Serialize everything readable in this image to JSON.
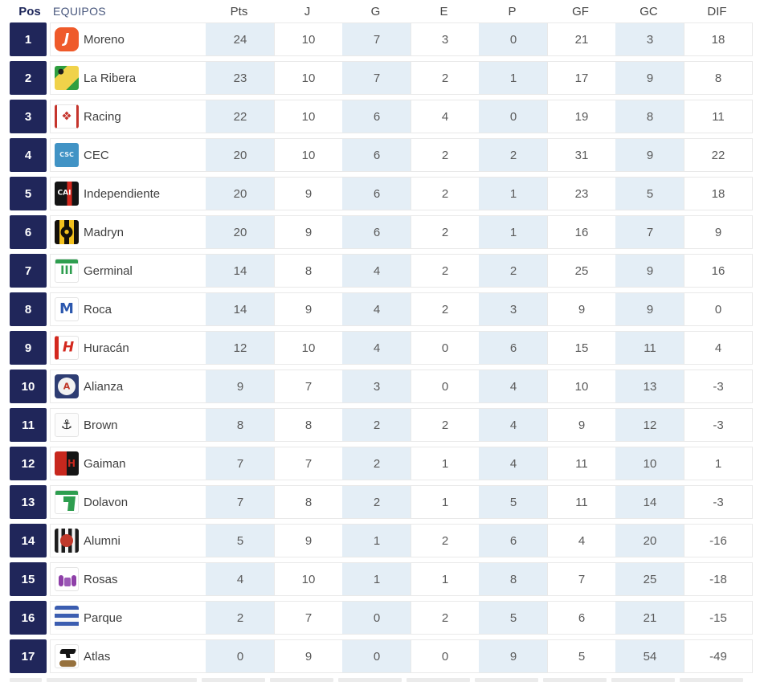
{
  "colors": {
    "position_box": "#20265a",
    "shaded_column": "#e4eef6",
    "row_border": "#e9e9e9",
    "header_pos_text": "#20295c",
    "header_equipos_text": "#47567c",
    "stat_header_text": "#454545",
    "stat_text": "#5a5a5a",
    "team_text": "#3f3f3f"
  },
  "table": {
    "columns": [
      {
        "key": "pos",
        "label": "Pos"
      },
      {
        "key": "team",
        "label": "EQUIPOS"
      },
      {
        "key": "pts",
        "label": "Pts"
      },
      {
        "key": "j",
        "label": "J"
      },
      {
        "key": "g",
        "label": "G"
      },
      {
        "key": "e",
        "label": "E"
      },
      {
        "key": "p",
        "label": "P"
      },
      {
        "key": "gf",
        "label": "GF"
      },
      {
        "key": "gc",
        "label": "GC"
      },
      {
        "key": "dif",
        "label": "DIF"
      }
    ],
    "shaded_stat_columns": [
      "pts",
      "g",
      "p",
      "gc"
    ],
    "rows": [
      {
        "pos": "1",
        "team": "Moreno",
        "stats": [
          24,
          10,
          7,
          3,
          0,
          21,
          3,
          18
        ],
        "logo": {
          "kind": "solid",
          "colors": [
            "#ef5a2a"
          ],
          "radius": 8,
          "glyph": {
            "text": "J",
            "color": "#ffffff",
            "size": 17,
            "italic": true
          }
        }
      },
      {
        "pos": "2",
        "team": "La Ribera",
        "stats": [
          23,
          10,
          7,
          2,
          1,
          17,
          9,
          8
        ],
        "logo": {
          "kind": "diagband",
          "colors": [
            "#2f9e3f",
            "#f0d24a"
          ],
          "glyph": {
            "text": "●",
            "color": "#1d1d1d",
            "size": 9,
            "pos": "tl"
          }
        }
      },
      {
        "pos": "3",
        "team": "Racing",
        "stats": [
          22,
          10,
          6,
          4,
          0,
          19,
          8,
          11
        ],
        "logo": {
          "kind": "solid",
          "colors": [
            "#ffffff"
          ],
          "edges": "#c5342c",
          "glyph": {
            "text": "❖",
            "color": "#c5342c",
            "size": 15
          }
        }
      },
      {
        "pos": "4",
        "team": "CEC",
        "stats": [
          20,
          10,
          6,
          2,
          2,
          31,
          9,
          22
        ],
        "logo": {
          "kind": "solid",
          "colors": [
            "#4193c5"
          ],
          "glyph": {
            "text": "CSC",
            "color": "#eaf4fa",
            "size": 8
          }
        }
      },
      {
        "pos": "5",
        "team": "Independiente",
        "stats": [
          20,
          9,
          6,
          2,
          1,
          23,
          5,
          18
        ],
        "logo": {
          "kind": "centerband",
          "colors": [
            "#141414",
            "#d3281e"
          ],
          "glyph": {
            "text": "CAI",
            "color": "#ffffff",
            "size": 9,
            "pos": "l"
          }
        }
      },
      {
        "pos": "6",
        "team": "Madryn",
        "stats": [
          20,
          9,
          6,
          2,
          1,
          16,
          7,
          9
        ],
        "logo": {
          "kind": "vstripes",
          "colors": [
            "#14100a",
            "#f2c01d"
          ],
          "stripes": 5,
          "ring": {
            "color": "#14100a",
            "size": 15
          },
          "glyph": {
            "text": "●",
            "color": "#f2c01d",
            "size": 7
          }
        }
      },
      {
        "pos": "7",
        "team": "Germinal",
        "stats": [
          14,
          8,
          4,
          2,
          2,
          25,
          9,
          16
        ],
        "logo": {
          "kind": "solid",
          "colors": [
            "#ffffff"
          ],
          "topbar": "#2e9e4f",
          "glyph": {
            "text": "III",
            "color": "#2e9e4f",
            "size": 14
          }
        }
      },
      {
        "pos": "8",
        "team": "Roca",
        "stats": [
          14,
          9,
          4,
          2,
          3,
          9,
          9,
          0
        ],
        "logo": {
          "kind": "solid",
          "colors": [
            "#ffffff"
          ],
          "glyph": {
            "text": "M",
            "color": "#2b57ae",
            "size": 18
          }
        }
      },
      {
        "pos": "9",
        "team": "Huracán",
        "stats": [
          12,
          10,
          4,
          0,
          6,
          15,
          11,
          4
        ],
        "logo": {
          "kind": "solid",
          "colors": [
            "#ffffff"
          ],
          "edge_left": "#d3281e",
          "glyph": {
            "text": "H",
            "color": "#d3281e",
            "size": 17,
            "italic": true
          }
        }
      },
      {
        "pos": "10",
        "team": "Alianza",
        "stats": [
          9,
          7,
          3,
          0,
          4,
          10,
          13,
          -3
        ],
        "logo": {
          "kind": "solid",
          "colors": [
            "#2e3d73"
          ],
          "radius": 4,
          "ring": {
            "color": "#f2f2f2",
            "size": 22
          },
          "glyph": {
            "text": "A",
            "color": "#c0392b",
            "size": 11
          }
        }
      },
      {
        "pos": "11",
        "team": "Brown",
        "stats": [
          8,
          8,
          2,
          2,
          4,
          9,
          12,
          -3
        ],
        "logo": {
          "kind": "solid",
          "colors": [
            "#fcfcfc"
          ],
          "glyph": {
            "text": "⚓",
            "color": "#1c1c1c",
            "size": 16
          }
        }
      },
      {
        "pos": "12",
        "team": "Gaiman",
        "stats": [
          7,
          7,
          2,
          1,
          4,
          11,
          10,
          1
        ],
        "logo": {
          "kind": "splitv",
          "colors": [
            "#c8281e",
            "#151515"
          ],
          "glyph": {
            "text": "H",
            "color": "#c8281e",
            "size": 12,
            "pos": "r"
          }
        }
      },
      {
        "pos": "13",
        "team": "Dolavon",
        "stats": [
          7,
          8,
          2,
          1,
          5,
          11,
          14,
          -3
        ],
        "logo": {
          "kind": "solid",
          "colors": [
            "#ffffff"
          ],
          "topbar": "#2e9e4f",
          "blocks": [
            {
              "x": 10,
              "y": 7,
              "w": 14,
              "h": 7,
              "color": "#2e9e4f"
            },
            {
              "x": 16,
              "y": 7,
              "w": 8,
              "h": 18,
              "color": "#2e9e4f",
              "skew": -6
            }
          ]
        }
      },
      {
        "pos": "14",
        "team": "Alumni",
        "stats": [
          5,
          9,
          1,
          2,
          6,
          4,
          20,
          -16
        ],
        "logo": {
          "kind": "vstripes",
          "colors": [
            "#1c1c1c",
            "#f3f3f3"
          ],
          "stripes": 7,
          "ring": {
            "color": "#c0392b",
            "size": 16
          }
        }
      },
      {
        "pos": "15",
        "team": "Rosas",
        "stats": [
          4,
          10,
          1,
          1,
          8,
          7,
          25,
          -18
        ],
        "logo": {
          "kind": "solid",
          "colors": [
            "#ffffff"
          ],
          "blocks": [
            {
              "x": 4,
              "y": 9,
              "w": 6,
              "h": 14,
              "color": "#8e3fa8",
              "round": 3
            },
            {
              "x": 20,
              "y": 9,
              "w": 6,
              "h": 14,
              "color": "#8e3fa8",
              "round": 3
            },
            {
              "x": 11,
              "y": 12,
              "w": 8,
              "h": 11,
              "color": "#9b59b6",
              "round": 2
            }
          ]
        }
      },
      {
        "pos": "16",
        "team": "Parque",
        "stats": [
          2,
          7,
          0,
          2,
          5,
          6,
          21,
          -15
        ],
        "logo": {
          "kind": "hstripes",
          "colors": [
            "#3b5db0",
            "#f8f8f8"
          ],
          "stripes": 6
        }
      },
      {
        "pos": "17",
        "team": "Atlas",
        "stats": [
          0,
          9,
          0,
          0,
          9,
          5,
          54,
          -49
        ],
        "logo": {
          "kind": "solid",
          "colors": [
            "#ffffff"
          ],
          "blocks": [
            {
              "x": 6,
              "y": 5,
              "w": 19,
              "h": 6,
              "color": "#141414",
              "skew": -20,
              "round": 2
            },
            {
              "x": 13,
              "y": 9,
              "w": 5,
              "h": 7,
              "color": "#141414",
              "skew": 10
            },
            {
              "x": 5,
              "y": 19,
              "w": 21,
              "h": 8,
              "color": "#96713d",
              "round": 4
            }
          ]
        }
      }
    ]
  }
}
